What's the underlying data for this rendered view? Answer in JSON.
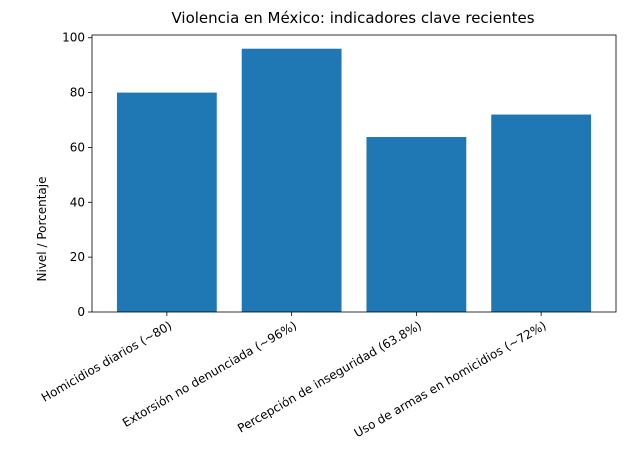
{
  "chart_data": {
    "type": "bar",
    "title": "Violencia en México: indicadores clave recientes",
    "xlabel": "",
    "ylabel": "Nivel / Porcentaje",
    "categories": [
      "Homicidios diarios (~80)",
      "Extorsión no denunciada (~96%)",
      "Percepción de inseguridad (63.8%)",
      "Uso de armas en homicidios (~72%)"
    ],
    "values": [
      80,
      96,
      63.8,
      72
    ],
    "ylim": [
      0,
      101
    ],
    "yticks": [
      0,
      20,
      40,
      60,
      80,
      100
    ],
    "bar_color": "#1f77b4",
    "grid": false,
    "legend": "none"
  }
}
